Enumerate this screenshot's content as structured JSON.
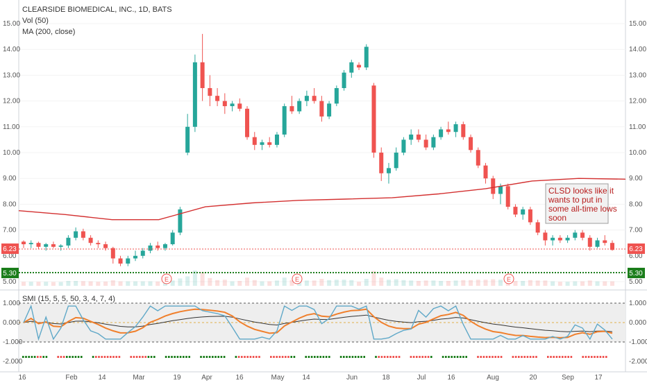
{
  "header": {
    "title": "CLEARSIDE BIOMEDICAL, INC., 1D, BATS",
    "indicators": [
      "Vol (50)",
      "MA (200, close)"
    ]
  },
  "price_axis": {
    "ticks": [
      "15.00",
      "14.00",
      "13.00",
      "12.00",
      "11.00",
      "10.00",
      "9.00",
      "8.00",
      "7.00",
      "6.00",
      "5.00"
    ],
    "last_price": "6.23",
    "support_level": "5.30"
  },
  "earnings_markers": [
    "E",
    "E",
    "E"
  ],
  "annotation": {
    "text_lines": [
      "CLSD looks like it",
      "wants to put in",
      "some all-time lows",
      "soon"
    ]
  },
  "oscillator": {
    "label": "SMI (15, 5, 5, 50, 3, 4, 7, 4)",
    "ticks": [
      "1.000",
      "0.000",
      "-1.000",
      "-2.000"
    ]
  },
  "time_axis": {
    "labels": [
      "16",
      "Feb",
      "14",
      "Mar",
      "19",
      "Apr",
      "16",
      "May",
      "14",
      "Jun",
      "18",
      "Jul",
      "16",
      "Aug",
      "20",
      "Sep",
      "17"
    ]
  },
  "colors": {
    "up": "#26a69a",
    "down": "#ef5350",
    "ma": "#d32f2f",
    "smi_fast": "#5fa8c8",
    "smi_slow": "#f07f2b",
    "smi_signal": "#333333",
    "support": "#1b7d1b"
  },
  "chart_data": {
    "type": "candlestick",
    "title": "CLEARSIDE BIOMEDICAL, INC., 1D, BATS",
    "ylim": [
      4.6,
      15.4
    ],
    "ma_200": [
      7.75,
      7.6,
      7.4,
      7.4,
      7.9,
      8.05,
      8.15,
      8.2,
      8.25,
      8.4,
      8.6,
      8.9,
      9.0,
      8.97
    ],
    "candles": [
      [
        6.55,
        6.6,
        6.3,
        6.45
      ],
      [
        6.45,
        6.6,
        6.3,
        6.5
      ],
      [
        6.5,
        6.55,
        6.25,
        6.35
      ],
      [
        6.35,
        6.5,
        6.2,
        6.45
      ],
      [
        6.45,
        6.55,
        6.3,
        6.35
      ],
      [
        6.35,
        6.45,
        6.2,
        6.4
      ],
      [
        6.4,
        6.8,
        6.3,
        6.7
      ],
      [
        6.7,
        7.1,
        6.6,
        6.95
      ],
      [
        6.95,
        7.05,
        6.6,
        6.7
      ],
      [
        6.7,
        6.8,
        6.4,
        6.5
      ],
      [
        6.5,
        6.6,
        6.3,
        6.45
      ],
      [
        6.45,
        6.55,
        6.2,
        6.3
      ],
      [
        6.3,
        6.35,
        5.7,
        5.9
      ],
      [
        5.9,
        6.0,
        5.6,
        5.7
      ],
      [
        5.7,
        6.0,
        5.6,
        5.9
      ],
      [
        5.9,
        6.2,
        5.8,
        6.0
      ],
      [
        6.0,
        6.3,
        5.9,
        6.2
      ],
      [
        6.2,
        6.5,
        6.1,
        6.4
      ],
      [
        6.4,
        6.55,
        6.2,
        6.3
      ],
      [
        6.3,
        6.5,
        6.2,
        6.45
      ],
      [
        6.45,
        7.0,
        6.4,
        6.9
      ],
      [
        6.9,
        7.9,
        6.8,
        7.8
      ],
      [
        10.0,
        11.5,
        9.9,
        11.0
      ],
      [
        11.0,
        13.8,
        10.8,
        13.5
      ],
      [
        13.5,
        14.6,
        12.0,
        12.5
      ],
      [
        12.5,
        13.0,
        11.8,
        12.2
      ],
      [
        12.2,
        12.5,
        11.8,
        12.0
      ],
      [
        12.0,
        12.3,
        11.5,
        11.8
      ],
      [
        11.8,
        12.0,
        11.6,
        11.9
      ],
      [
        11.9,
        12.1,
        11.6,
        11.7
      ],
      [
        11.7,
        11.8,
        10.5,
        10.6
      ],
      [
        10.6,
        10.8,
        10.1,
        10.3
      ],
      [
        10.3,
        10.5,
        10.1,
        10.4
      ],
      [
        10.4,
        10.6,
        10.2,
        10.3
      ],
      [
        10.3,
        10.8,
        10.2,
        10.7
      ],
      [
        10.7,
        11.9,
        10.6,
        11.8
      ],
      [
        11.8,
        12.2,
        11.5,
        11.6
      ],
      [
        11.6,
        12.1,
        11.5,
        12.0
      ],
      [
        12.0,
        12.4,
        11.8,
        12.2
      ],
      [
        12.2,
        12.5,
        11.9,
        12.0
      ],
      [
        12.0,
        12.2,
        11.2,
        11.4
      ],
      [
        11.4,
        12.0,
        11.3,
        11.9
      ],
      [
        11.9,
        12.6,
        11.8,
        12.5
      ],
      [
        12.5,
        13.2,
        12.4,
        13.1
      ],
      [
        13.1,
        13.6,
        12.9,
        13.5
      ],
      [
        13.4,
        13.5,
        13.2,
        13.3
      ],
      [
        13.3,
        14.2,
        13.2,
        14.1
      ],
      [
        12.6,
        12.7,
        9.8,
        10.0
      ],
      [
        10.0,
        10.2,
        8.9,
        9.2
      ],
      [
        9.2,
        9.6,
        8.8,
        9.4
      ],
      [
        9.4,
        10.2,
        9.3,
        10.0
      ],
      [
        10.0,
        10.6,
        9.9,
        10.5
      ],
      [
        10.5,
        10.9,
        10.3,
        10.7
      ],
      [
        10.7,
        10.9,
        10.4,
        10.5
      ],
      [
        10.5,
        10.7,
        10.1,
        10.2
      ],
      [
        10.2,
        10.7,
        10.1,
        10.6
      ],
      [
        10.6,
        11.0,
        10.5,
        10.9
      ],
      [
        10.9,
        11.2,
        10.7,
        10.8
      ],
      [
        10.8,
        11.2,
        10.6,
        11.1
      ],
      [
        11.1,
        11.2,
        10.5,
        10.6
      ],
      [
        10.6,
        10.7,
        10.0,
        10.1
      ],
      [
        10.1,
        10.2,
        9.4,
        9.5
      ],
      [
        9.5,
        9.6,
        8.8,
        9.0
      ],
      [
        9.0,
        9.1,
        8.2,
        8.4
      ],
      [
        8.4,
        8.8,
        8.0,
        8.7
      ],
      [
        8.7,
        8.8,
        7.8,
        7.9
      ],
      [
        7.9,
        8.0,
        7.5,
        7.6
      ],
      [
        7.6,
        7.9,
        7.4,
        7.8
      ],
      [
        7.8,
        7.9,
        7.2,
        7.3
      ],
      [
        7.3,
        7.4,
        6.8,
        6.9
      ],
      [
        6.9,
        7.0,
        6.4,
        6.6
      ],
      [
        6.6,
        6.8,
        6.4,
        6.7
      ],
      [
        6.7,
        6.8,
        6.5,
        6.6
      ],
      [
        6.6,
        6.8,
        6.5,
        6.7
      ],
      [
        6.7,
        7.0,
        6.6,
        6.9
      ],
      [
        6.9,
        7.0,
        6.6,
        6.7
      ],
      [
        6.7,
        6.8,
        6.2,
        6.35
      ],
      [
        6.35,
        6.7,
        6.3,
        6.6
      ],
      [
        6.6,
        6.8,
        6.4,
        6.5
      ],
      [
        6.5,
        6.6,
        6.2,
        6.23
      ]
    ]
  }
}
